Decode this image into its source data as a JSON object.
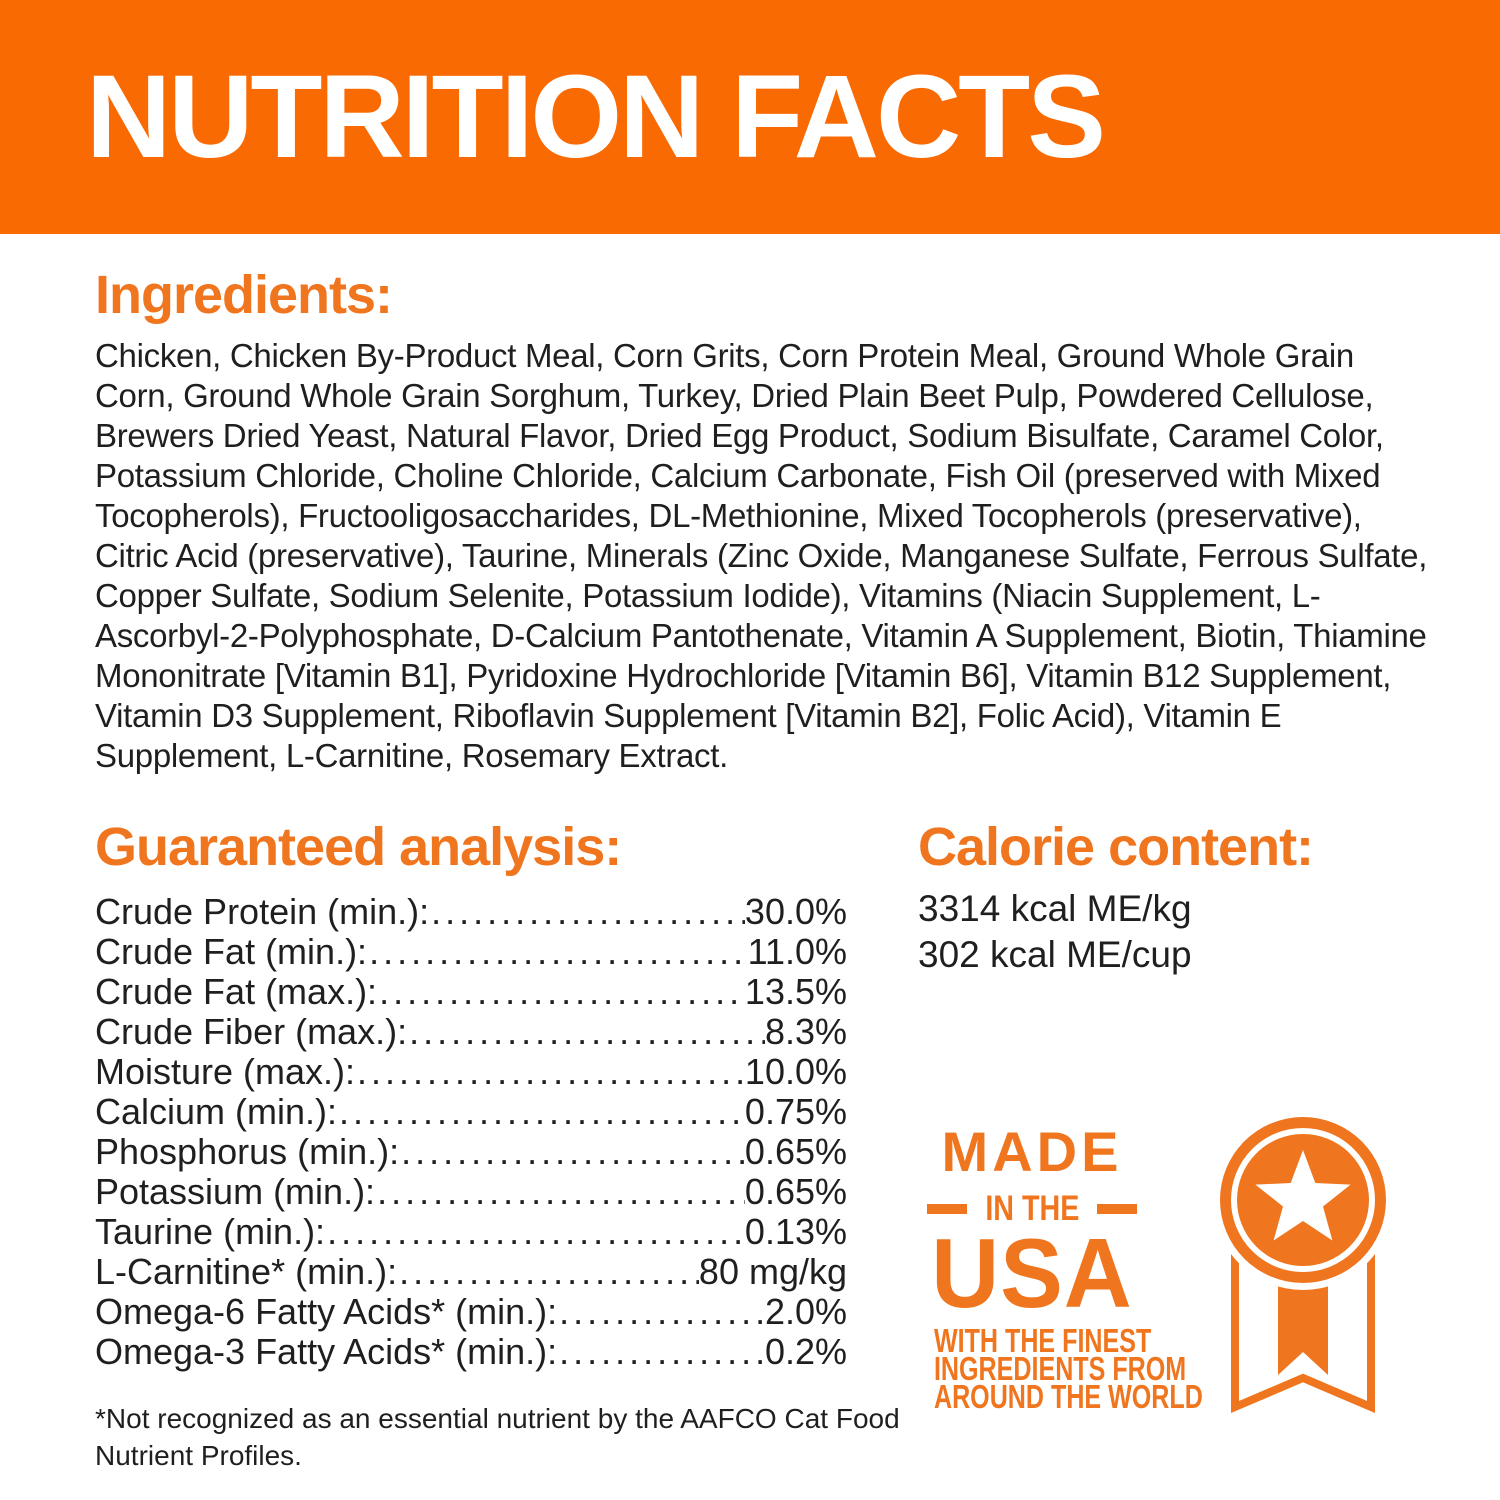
{
  "header": {
    "title": "NUTRITION FACTS"
  },
  "ingredients": {
    "heading": "Ingredients:",
    "text": "Chicken, Chicken By-Product Meal, Corn Grits, Corn Protein Meal, Ground Whole Grain Corn, Ground Whole Grain Sorghum, Turkey, Dried Plain Beet Pulp, Powdered Cellulose, Brewers Dried Yeast, Natural Flavor, Dried Egg Product, Sodium Bisulfate, Caramel Color, Potassium Chloride, Choline Chloride, Calcium Carbonate, Fish Oil (preserved with Mixed Tocopherols), Fructooligosaccharides, DL-Methionine, Mixed Tocopherols (preservative), Citric Acid (preservative), Taurine, Minerals (Zinc Oxide, Manganese Sulfate, Ferrous Sulfate, Copper Sulfate, Sodium Selenite, Potassium Iodide), Vitamins (Niacin Supplement, L-Ascorbyl-2-Polyphosphate, D-Calcium Pantothenate, Vitamin A Supplement, Biotin, Thiamine Mononitrate [Vitamin B1], Pyridoxine Hydrochloride [Vitamin B6], Vitamin B12 Supplement, Vitamin D3 Supplement, Riboflavin Supplement [Vitamin B2], Folic Acid), Vitamin E Supplement, L-Carnitine, Rosemary Extract."
  },
  "guaranteed_analysis": {
    "heading": "Guaranteed analysis:",
    "rows": [
      {
        "label": "Crude Protein (min.):",
        "value": "30.0%"
      },
      {
        "label": "Crude Fat (min.):",
        "value": "11.0%"
      },
      {
        "label": "Crude Fat (max.):",
        "value": "13.5%"
      },
      {
        "label": "Crude Fiber (max.):",
        "value": "8.3%"
      },
      {
        "label": "Moisture (max.):",
        "value": "10.0%"
      },
      {
        "label": "Calcium (min.):",
        "value": "0.75%"
      },
      {
        "label": "Phosphorus (min.):",
        "value": "0.65%"
      },
      {
        "label": "Potassium (min.):",
        "value": "0.65%"
      },
      {
        "label": "Taurine (min.):",
        "value": "0.13%"
      },
      {
        "label": "L-Carnitine* (min.):",
        "value": "80 mg/kg"
      },
      {
        "label": "Omega-6 Fatty Acids* (min.):",
        "value": "2.0%"
      },
      {
        "label": "Omega-3 Fatty Acids* (min.):",
        "value": "0.2%"
      }
    ],
    "footnote": "*Not recognized as an essential nutrient by the AAFCO Cat Food Nutrient Profiles."
  },
  "calorie_content": {
    "heading": "Calorie content:",
    "lines": [
      "3314 kcal ME/kg",
      "302 kcal ME/cup"
    ]
  },
  "usa_badge": {
    "made": "MADE",
    "in_the": "IN THE",
    "usa": "USA",
    "tagline_lines": [
      "WITH THE FINEST",
      "INGREDIENTS FROM",
      "AROUND THE WORLD"
    ],
    "medal_icon": "ribbon-medal-star-icon"
  },
  "colors": {
    "banner_orange": "#FA6A02",
    "accent_orange": "#F0751F",
    "text_dark": "#1F1F1F"
  }
}
